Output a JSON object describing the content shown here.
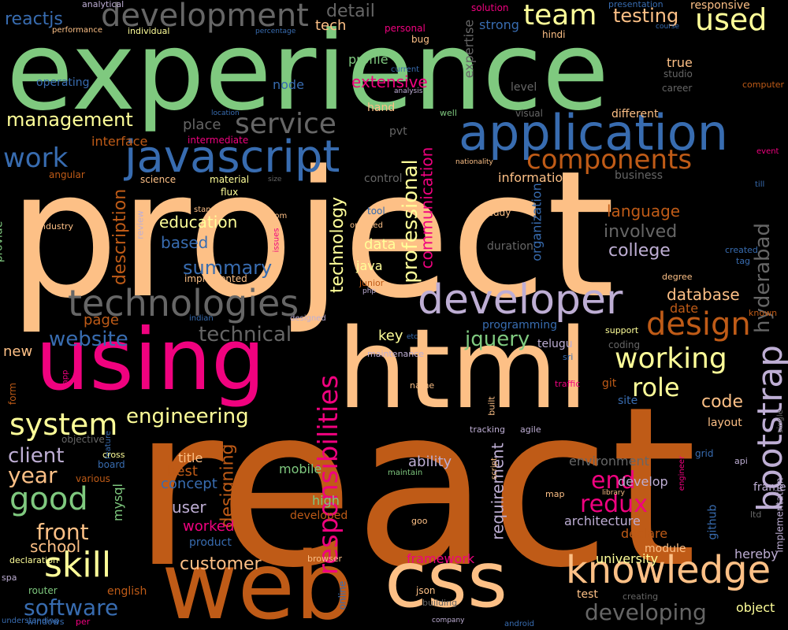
{
  "words": [
    {
      "text": "project",
      "color": "#fdc086"
    },
    {
      "text": "react",
      "color": "#bf5b17"
    },
    {
      "text": "experience",
      "color": "#7fc97f"
    },
    {
      "text": "using",
      "color": "#f0027f"
    },
    {
      "text": "html",
      "color": "#fdc086"
    },
    {
      "text": "web",
      "color": "#bf5b17"
    },
    {
      "text": "css",
      "color": "#fdc086"
    },
    {
      "text": "application",
      "color": "#386cb0"
    },
    {
      "text": "javascript",
      "color": "#386cb0"
    },
    {
      "text": "developer",
      "color": "#beaed4"
    },
    {
      "text": "knowledge",
      "color": "#fdc086"
    },
    {
      "text": "technologies",
      "color": "#666666"
    },
    {
      "text": "development",
      "color": "#666666"
    },
    {
      "text": "responsibilities",
      "color": "#f0027f"
    },
    {
      "text": "bootstrap",
      "color": "#beaed4"
    },
    {
      "text": "design",
      "color": "#bf5b17"
    },
    {
      "text": "working",
      "color": "#ffff99"
    },
    {
      "text": "skill",
      "color": "#ffff99"
    },
    {
      "text": "good",
      "color": "#7fc97f"
    },
    {
      "text": "system",
      "color": "#ffff99"
    },
    {
      "text": "service",
      "color": "#666666"
    },
    {
      "text": "components",
      "color": "#bf5b17"
    },
    {
      "text": "team",
      "color": "#ffff99"
    },
    {
      "text": "used",
      "color": "#ffff99"
    },
    {
      "text": "work",
      "color": "#386cb0"
    },
    {
      "text": "role",
      "color": "#ffff99"
    },
    {
      "text": "software",
      "color": "#386cb0"
    },
    {
      "text": "end",
      "color": "#f0027f"
    },
    {
      "text": "redux",
      "color": "#f0027f"
    },
    {
      "text": "developing",
      "color": "#666666"
    },
    {
      "text": "engineering",
      "color": "#ffff99"
    },
    {
      "text": "professional",
      "color": "#ffff99"
    },
    {
      "text": "front",
      "color": "#fdc086"
    },
    {
      "text": "year",
      "color": "#fdc086"
    },
    {
      "text": "client",
      "color": "#beaed4"
    },
    {
      "text": "management",
      "color": "#ffff99"
    },
    {
      "text": "website",
      "color": "#386cb0"
    },
    {
      "text": "technical",
      "color": "#666666"
    },
    {
      "text": "jquery",
      "color": "#7fc97f"
    },
    {
      "text": "customer",
      "color": "#fdc086"
    },
    {
      "text": "college",
      "color": "#beaed4"
    },
    {
      "text": "involved",
      "color": "#666666"
    },
    {
      "text": "language",
      "color": "#bf5b17"
    },
    {
      "text": "responsible",
      "color": "#666666"
    },
    {
      "text": "hyderabad",
      "color": "#fdc086"
    },
    {
      "text": "database",
      "color": "#bf5b17"
    },
    {
      "text": "date",
      "color": "#fdc086"
    },
    {
      "text": "code",
      "color": "#386cb0"
    },
    {
      "text": "summary",
      "color": "#386cb0"
    },
    {
      "text": "based",
      "color": "#ffff99"
    },
    {
      "text": "education",
      "color": "#bf5b17"
    },
    {
      "text": "description",
      "color": "#bf5b17"
    },
    {
      "text": "designing",
      "color": "#bf5b17"
    },
    {
      "text": "technology",
      "color": "#ffff99"
    },
    {
      "text": "page",
      "color": "#fdc086"
    },
    {
      "text": "testing",
      "color": "#666666"
    },
    {
      "text": "detail",
      "color": "#386cb0"
    },
    {
      "text": "reactjs",
      "color": "#fdc086"
    },
    {
      "text": "tech",
      "color": "#f0027f"
    },
    {
      "text": "extensive",
      "color": "#7fc97f"
    },
    {
      "text": "profile",
      "color": "#386cb0"
    },
    {
      "text": "node",
      "color": "#bf5b17"
    },
    {
      "text": "interface",
      "color": "#ffff99"
    },
    {
      "text": "communication",
      "color": "#f0027f"
    },
    {
      "text": "organization",
      "color": "#386cb0"
    },
    {
      "text": "information",
      "color": "#fdc086"
    },
    {
      "text": "requirement",
      "color": "#beaed4"
    },
    {
      "text": "worked",
      "color": "#f0027f"
    },
    {
      "text": "user",
      "color": "#beaed4"
    },
    {
      "text": "concept",
      "color": "#386cb0"
    },
    {
      "text": "best",
      "color": "#bf5b17"
    },
    {
      "text": "title",
      "color": "#fdc086"
    },
    {
      "text": "school",
      "color": "#fdc086"
    },
    {
      "text": "mobile",
      "color": "#7fc97f"
    },
    {
      "text": "high",
      "color": "#7fc97f"
    },
    {
      "text": "ability",
      "color": "#beaed4"
    },
    {
      "text": "framework",
      "color": "#f0027f"
    },
    {
      "text": "architecture",
      "color": "#beaed4"
    },
    {
      "text": "university",
      "color": "#ffff99"
    },
    {
      "text": "environment",
      "color": "#666666"
    },
    {
      "text": "develop",
      "color": "#beaed4"
    },
    {
      "text": "declare",
      "color": "#bf5b17"
    },
    {
      "text": "hereby",
      "color": "#beaed4"
    },
    {
      "text": "object",
      "color": "#ffff99"
    },
    {
      "text": "data",
      "color": "#ffff99"
    },
    {
      "text": "java",
      "color": "#ffff99"
    },
    {
      "text": "key",
      "color": "#ffff99"
    },
    {
      "text": "new",
      "color": "#fdc086"
    },
    {
      "text": "mysql",
      "color": "#7fc97f"
    },
    {
      "text": "product",
      "color": "#386cb0"
    },
    {
      "text": "developed",
      "color": "#bf5b17"
    },
    {
      "text": "english",
      "color": "#bf5b17"
    },
    {
      "text": "module",
      "color": "#fdc086"
    },
    {
      "text": "layout",
      "color": "#fdc086"
    },
    {
      "text": "implementation",
      "color": "#beaed4"
    },
    {
      "text": "github",
      "color": "#386cb0"
    },
    {
      "text": "strong",
      "color": "#386cb0"
    },
    {
      "text": "solution",
      "color": "#f0027f"
    },
    {
      "text": "responsive",
      "color": "#666666"
    },
    {
      "text": "expertise",
      "color": "#fdc086"
    },
    {
      "text": "presentation",
      "color": "#386cb0"
    },
    {
      "text": "personal",
      "color": "#f0027f"
    },
    {
      "text": "true",
      "color": "#fdc086"
    },
    {
      "text": "studio",
      "color": "#666666"
    },
    {
      "text": "career",
      "color": "#666666"
    },
    {
      "text": "computer",
      "color": "#bf5b17"
    },
    {
      "text": "level",
      "color": "#666666"
    },
    {
      "text": "visual",
      "color": "#666666"
    },
    {
      "text": "different",
      "color": "#fdc086"
    },
    {
      "text": "place",
      "color": "#666666"
    },
    {
      "text": "intermediate",
      "color": "#f0027f"
    },
    {
      "text": "angular",
      "color": "#bf5b17"
    },
    {
      "text": "science",
      "color": "#fdc086"
    },
    {
      "text": "material",
      "color": "#ffff99"
    },
    {
      "text": "flux",
      "color": "#ffff99"
    },
    {
      "text": "control",
      "color": "#666666"
    },
    {
      "text": "business",
      "color": "#666666"
    },
    {
      "text": "industry",
      "color": "#fdc086"
    },
    {
      "text": "standards",
      "color": "#fdc086"
    },
    {
      "text": "dom",
      "color": "#beaed4"
    },
    {
      "text": "review",
      "color": "#fdc086"
    },
    {
      "text": "issues",
      "color": "#f0027f"
    },
    {
      "text": "oriented",
      "color": "#fdc086"
    },
    {
      "text": "tool",
      "color": "#386cb0"
    },
    {
      "text": "reddy",
      "color": "#fdc086"
    },
    {
      "text": "duration",
      "color": "#666666"
    },
    {
      "text": "implemented",
      "color": "#7fc97f"
    },
    {
      "text": "provide",
      "color": "#fdc086"
    },
    {
      "text": "junior",
      "color": "#bf5b17"
    },
    {
      "text": "php",
      "color": "#beaed4"
    },
    {
      "text": "designed",
      "color": "#beaed4"
    },
    {
      "text": "indian",
      "color": "#386cb0"
    },
    {
      "text": "programming",
      "color": "#386cb0"
    },
    {
      "text": "telugu",
      "color": "#beaed4"
    },
    {
      "text": "maintenance",
      "color": "#beaed4"
    },
    {
      "text": "etc",
      "color": "#386cb0"
    },
    {
      "text": "coding",
      "color": "#666666"
    },
    {
      "text": "support",
      "color": "#ffff99"
    },
    {
      "text": "sri",
      "color": "#386cb0"
    },
    {
      "text": "degree",
      "color": "#fdc086"
    },
    {
      "text": "known",
      "color": "#bf5b17"
    },
    {
      "text": "created",
      "color": "#386cb0"
    },
    {
      "text": "tag",
      "color": "#386cb0"
    },
    {
      "text": "event",
      "color": "#f0027f"
    },
    {
      "text": "till",
      "color": "#386cb0"
    },
    {
      "text": "nationality",
      "color": "#fdc086"
    },
    {
      "text": "well",
      "color": "#7fc97f"
    },
    {
      "text": "pvt",
      "color": "#666666"
    },
    {
      "text": "hand",
      "color": "#fdc086"
    },
    {
      "text": "analysis",
      "color": "#beaed4"
    },
    {
      "text": "current",
      "color": "#386cb0"
    },
    {
      "text": "bug",
      "color": "#fdc086"
    },
    {
      "text": "operating",
      "color": "#386cb0"
    },
    {
      "text": "hindi",
      "color": "#fdc086"
    },
    {
      "text": "course",
      "color": "#386cb0"
    },
    {
      "text": "analytical",
      "color": "#beaed4"
    },
    {
      "text": "performance",
      "color": "#fdc086"
    },
    {
      "text": "individual",
      "color": "#ffff99"
    },
    {
      "text": "percentage",
      "color": "#386cb0"
    },
    {
      "text": "location",
      "color": "#386cb0"
    },
    {
      "text": "size",
      "color": "#666666"
    },
    {
      "text": "name",
      "color": "#bf5b17"
    },
    {
      "text": "traffic",
      "color": "#f0027f"
    },
    {
      "text": "git",
      "color": "#fdc086"
    },
    {
      "text": "site",
      "color": "#f0027f"
    },
    {
      "text": "form",
      "color": "#bf5b17"
    },
    {
      "text": "app",
      "color": "#386cb0"
    },
    {
      "text": "objective",
      "color": "#666666"
    },
    {
      "text": "cross",
      "color": "#ffff99"
    },
    {
      "text": "board",
      "color": "#386cb0"
    },
    {
      "text": "feature",
      "color": "#bf5b17"
    },
    {
      "text": "various",
      "color": "#beaed4"
    },
    {
      "text": "built",
      "color": "#beaed4"
    },
    {
      "text": "tracking",
      "color": "#fdc086"
    },
    {
      "text": "agile",
      "color": "#7fc97f"
    },
    {
      "text": "maintain",
      "color": "#666666"
    },
    {
      "text": "script",
      "color": "#fdc086"
    },
    {
      "text": "engineer",
      "color": "#fdc086"
    },
    {
      "text": "grid",
      "color": "#f0027f"
    },
    {
      "text": "single",
      "color": "#386cb0"
    },
    {
      "text": "api",
      "color": "#beaed4"
    },
    {
      "text": "frame",
      "color": "#666666"
    },
    {
      "text": "ltd",
      "color": "#beaed4"
    },
    {
      "text": "goo",
      "color": "#666666"
    },
    {
      "text": "map",
      "color": "#fdc086"
    },
    {
      "text": "library",
      "color": "#fdc086"
    },
    {
      "text": "online",
      "color": "#ffff99"
    },
    {
      "text": "browser",
      "color": "#beaed4"
    },
    {
      "text": "declaration",
      "color": "#7fc97f"
    },
    {
      "text": "spa",
      "color": "#386cb0"
    },
    {
      "text": "router",
      "color": "#386cb0"
    },
    {
      "text": "understanding",
      "color": "#f0027f"
    },
    {
      "text": "windows",
      "color": "#386cb0"
    },
    {
      "text": "per",
      "color": "#386cb0"
    },
    {
      "text": "json",
      "color": "#fdc086"
    },
    {
      "text": "building",
      "color": "#666666"
    },
    {
      "text": "company",
      "color": "#beaed4"
    },
    {
      "text": "android",
      "color": "#386cb0"
    },
    {
      "text": "test",
      "color": "#fdc086"
    },
    {
      "text": "creating",
      "color": "#666666"
    }
  ]
}
